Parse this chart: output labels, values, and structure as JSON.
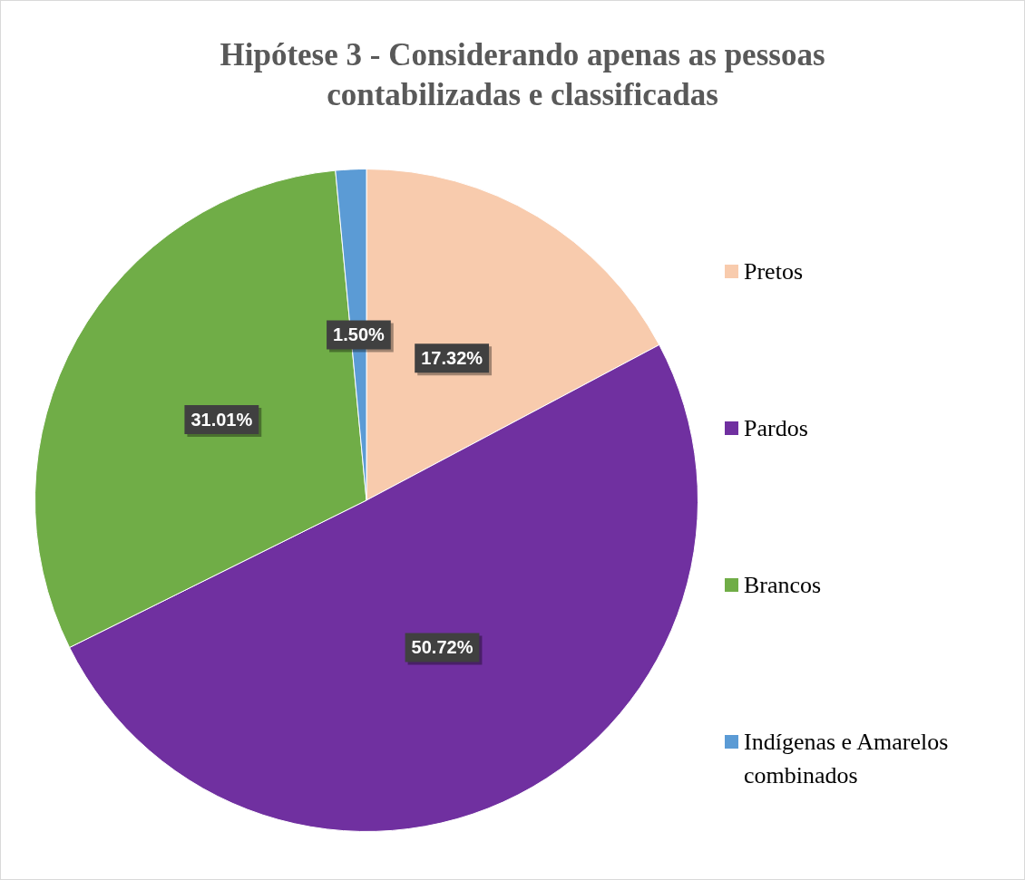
{
  "chart_data": {
    "type": "pie",
    "title": "Hipótese 3 - Considerando apenas as pessoas contabilizadas e classificadas",
    "categories": [
      "Pretos",
      "Pardos",
      "Brancos",
      "Indígenas e Amarelos combinados"
    ],
    "values": [
      17.32,
      50.72,
      31.01,
      1.5
    ],
    "colors": [
      "#f8cbad",
      "#7030a0",
      "#70ad47",
      "#5b9bd5"
    ],
    "value_labels": [
      "17.32%",
      "50.72%",
      "31.01%",
      "1.50%"
    ],
    "legend": "right"
  }
}
